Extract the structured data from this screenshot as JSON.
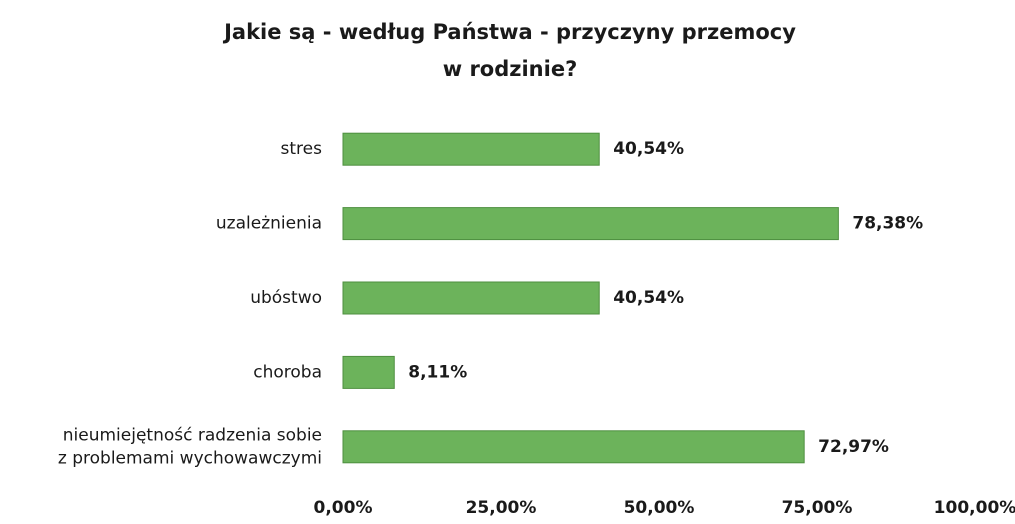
{
  "chart_data": {
    "type": "bar",
    "orientation": "horizontal",
    "title": [
      "Jakie są - według Państwa - przyczyny przemocy",
      "w rodzinie?"
    ],
    "categories": [
      "stres",
      "uzależnienia",
      "ubóstwo",
      "choroba",
      "nieumiejętność radzenia sobie\nz problemami wychowawczymi"
    ],
    "values": [
      40.54,
      78.38,
      40.54,
      8.11,
      72.97
    ],
    "value_labels": [
      "40,54%",
      "78,38%",
      "40,54%",
      "8,11%",
      "72,97%"
    ],
    "color": "#6cb35b",
    "xlim": [
      0,
      100
    ],
    "xticks": [
      {
        "value": 0,
        "label": "0,00%"
      },
      {
        "value": 25,
        "label": "25,00%"
      },
      {
        "value": 50,
        "label": "50,00%"
      },
      {
        "value": 75,
        "label": "75,00%"
      },
      {
        "value": 100,
        "label": "100,00%"
      }
    ],
    "grid": false
  }
}
